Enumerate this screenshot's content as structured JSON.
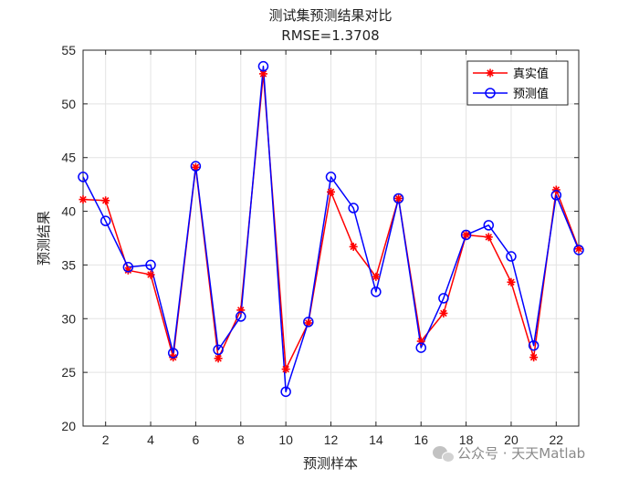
{
  "chart_data": {
    "type": "line",
    "title": "测试集预测结果对比",
    "subtitle": "RMSE=1.3708",
    "xlabel": "预测样本",
    "ylabel": "预测结果",
    "xlim": [
      1,
      23
    ],
    "ylim": [
      20,
      55
    ],
    "xticks": [
      2,
      4,
      6,
      8,
      10,
      12,
      14,
      16,
      18,
      20,
      22
    ],
    "yticks": [
      20,
      25,
      30,
      35,
      40,
      45,
      50,
      55
    ],
    "grid": true,
    "legend_position": "top-right",
    "x": [
      1,
      2,
      3,
      4,
      5,
      6,
      7,
      8,
      9,
      10,
      11,
      12,
      13,
      14,
      15,
      16,
      17,
      18,
      19,
      20,
      21,
      22,
      23
    ],
    "series": [
      {
        "name": "真实值",
        "color": "#ff0000",
        "marker": "asterisk",
        "values": [
          41.1,
          41.0,
          34.5,
          34.1,
          26.4,
          44.1,
          26.3,
          30.8,
          52.8,
          25.3,
          29.6,
          41.8,
          36.7,
          33.9,
          41.2,
          27.9,
          30.5,
          37.8,
          37.6,
          33.4,
          26.4,
          42.0,
          36.5
        ]
      },
      {
        "name": "预测值",
        "color": "#0000ff",
        "marker": "circle",
        "values": [
          43.2,
          39.1,
          34.8,
          35.0,
          26.8,
          44.2,
          27.1,
          30.2,
          53.5,
          23.2,
          29.7,
          43.2,
          40.3,
          32.5,
          41.2,
          27.3,
          31.9,
          37.8,
          38.7,
          35.8,
          27.5,
          41.5,
          36.4
        ]
      }
    ]
  },
  "watermark": {
    "icon": "wechat-icon",
    "text": "公众号 · 天天Matlab"
  }
}
